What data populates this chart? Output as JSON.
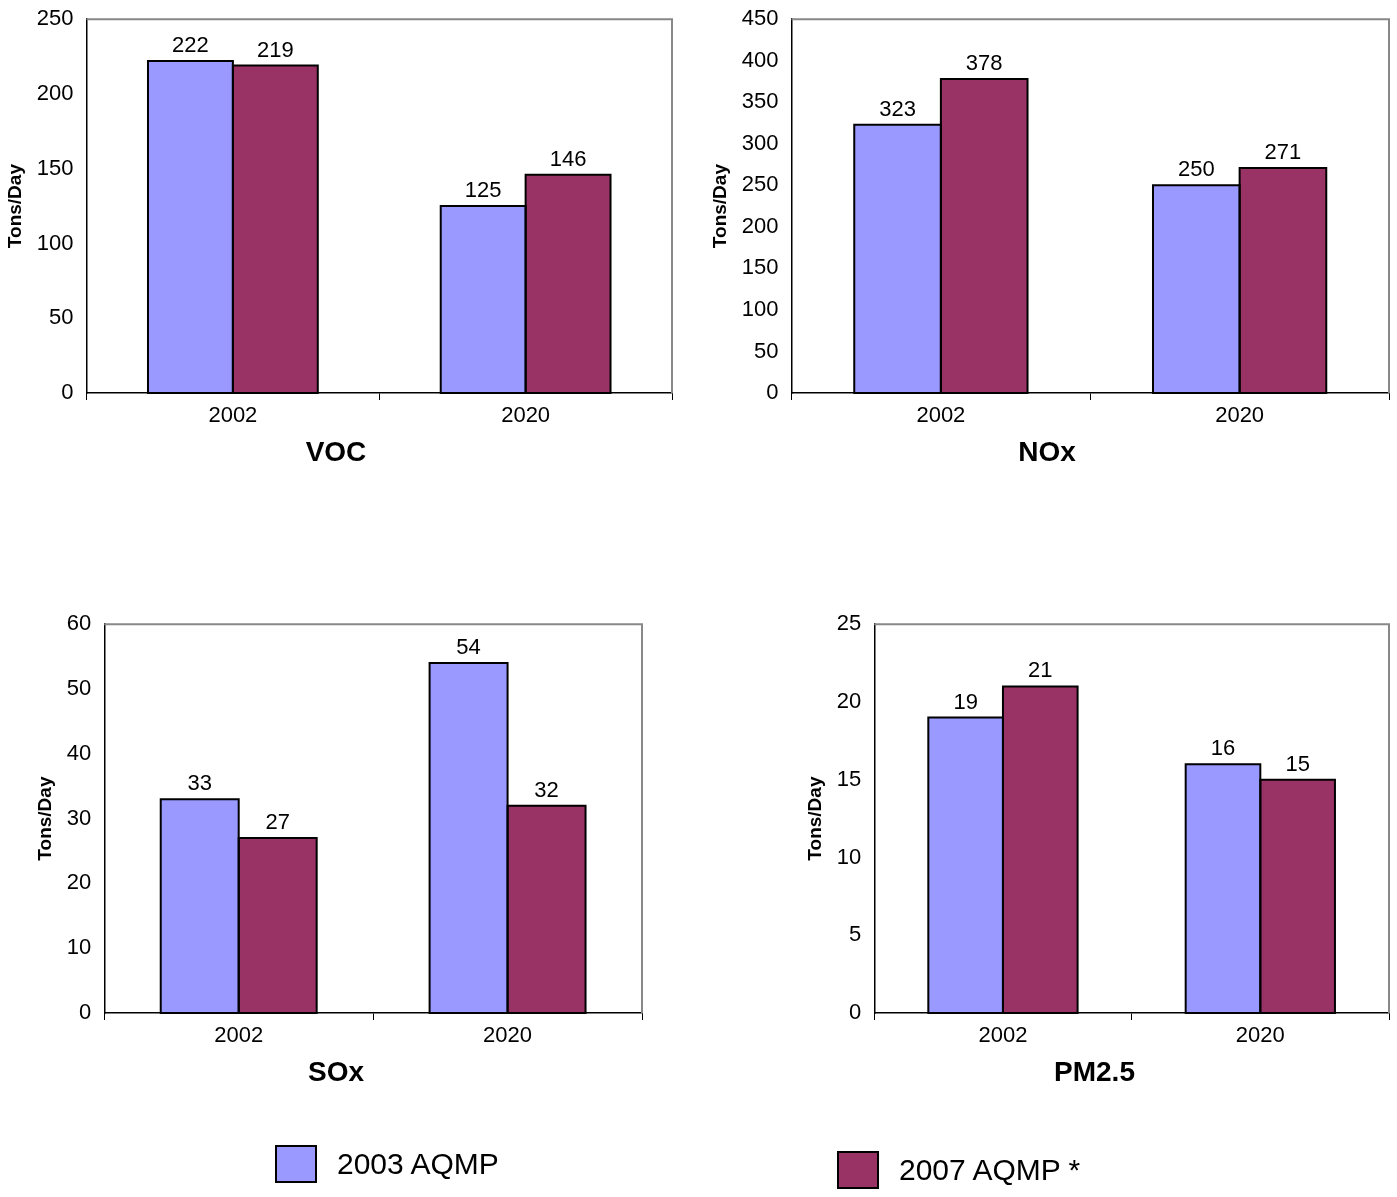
{
  "chart_data": [
    {
      "type": "bar",
      "title": "VOC",
      "ylabel": "Tons/Day",
      "categories": [
        "2002",
        "2020"
      ],
      "ylim": [
        0,
        250
      ],
      "yticks": [
        0,
        50,
        100,
        150,
        200,
        250
      ],
      "data_labels": true,
      "legend": "bottom",
      "series": [
        {
          "name": "2003 AQMP",
          "color": "#9999ff",
          "values": [
            222,
            125
          ]
        },
        {
          "name": "2007 AQMP *",
          "color": "#993366",
          "values": [
            219,
            146
          ]
        }
      ]
    },
    {
      "type": "bar",
      "title": "NOx",
      "ylabel": "Tons/Day",
      "categories": [
        "2002",
        "2020"
      ],
      "ylim": [
        0,
        450
      ],
      "yticks": [
        0,
        50,
        100,
        150,
        200,
        250,
        300,
        350,
        400,
        450
      ],
      "data_labels": true,
      "series": [
        {
          "color": "#9999ff",
          "values": [
            323,
            250
          ]
        },
        {
          "color": "#993366",
          "values": [
            378,
            271
          ]
        }
      ]
    },
    {
      "type": "bar",
      "title": "SOx",
      "ylabel": "Tons/Day",
      "categories": [
        "2002",
        "2020"
      ],
      "ylim": [
        0,
        60
      ],
      "yticks": [
        0,
        10,
        20,
        30,
        40,
        50,
        60
      ],
      "data_labels": true,
      "series": [
        {
          "color": "#9999ff",
          "values": [
            33,
            54
          ]
        },
        {
          "color": "#993366",
          "values": [
            27,
            32
          ]
        }
      ]
    },
    {
      "type": "bar",
      "title": "PM2.5",
      "ylabel": "Tons/Day",
      "categories": [
        "2002",
        "2020"
      ],
      "ylim": [
        0,
        25
      ],
      "yticks": [
        0,
        5,
        10,
        15,
        20,
        25
      ],
      "data_labels": true,
      "series": [
        {
          "color": "#9999ff",
          "values": [
            19,
            16
          ]
        },
        {
          "color": "#993366",
          "values": [
            21,
            15
          ]
        }
      ]
    }
  ]
}
